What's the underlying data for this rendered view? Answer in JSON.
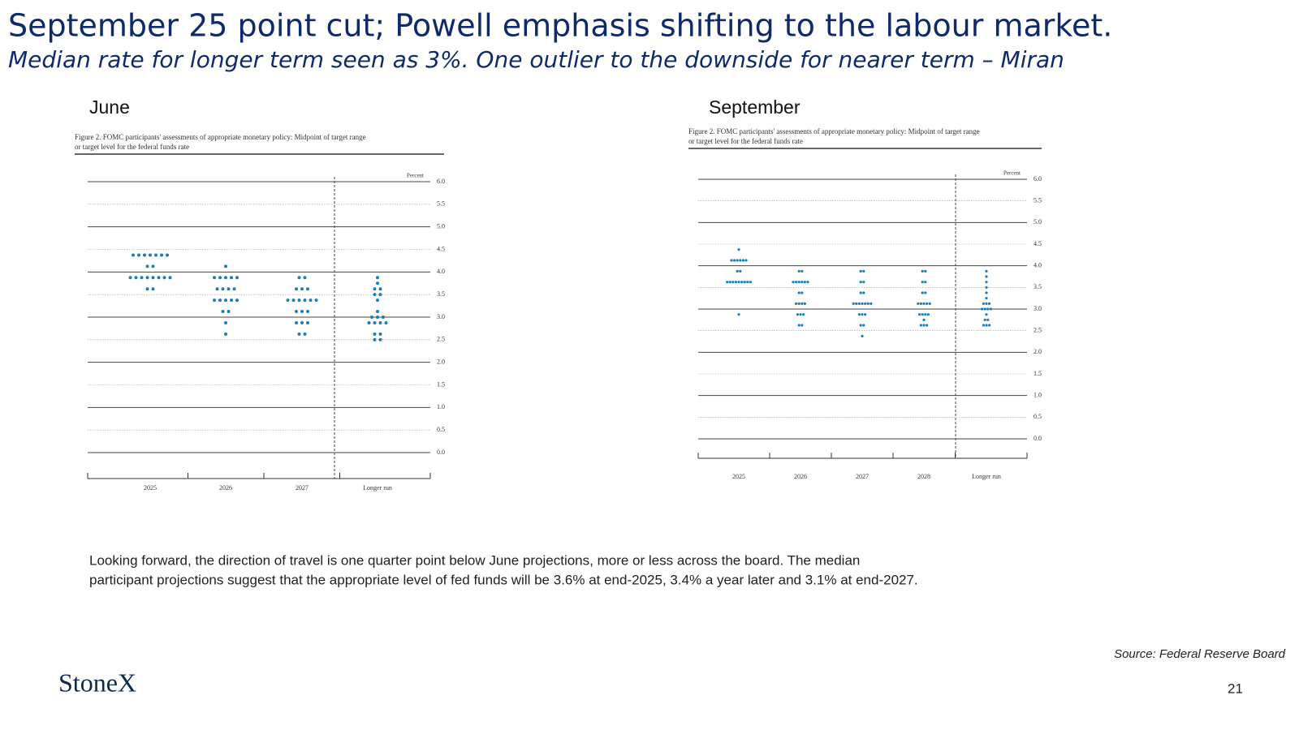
{
  "header": {
    "title": "September 25 point cut; Powell emphasis shifting to the labour market.",
    "subtitle": "Median rate for longer term seen as 3%.  One outlier to the downside for nearer term – Miran"
  },
  "chart_data": [
    {
      "type": "dotplot",
      "label": "June",
      "caption": [
        "Figure 2.  FOMC participants' assessments of appropriate monetary policy:  Midpoint of target range",
        "or target level for the federal funds rate"
      ],
      "y_label": "Percent",
      "color": "#1a7fb5",
      "grid": true,
      "categories": [
        "2025",
        "2026",
        "2027",
        "Longer run"
      ],
      "ylim": [
        0,
        6
      ],
      "yticks": [
        {
          "value": 6,
          "label": "6.0"
        },
        5.5,
        {
          "value": 5,
          "label": "5.0"
        },
        4.5,
        {
          "value": 4,
          "label": "4.0"
        },
        3.5,
        {
          "value": 3,
          "label": "3.0"
        },
        2.5,
        {
          "value": 2,
          "label": "2.0"
        },
        1.5,
        {
          "value": 1,
          "label": "1.0"
        },
        0.5,
        {
          "value": 0,
          "label": "0.0"
        }
      ],
      "values": [
        [
          4.375,
          4.375,
          4.375,
          4.375,
          4.375,
          4.375,
          4.375,
          4.125,
          4.125,
          3.875,
          3.875,
          3.875,
          3.875,
          3.875,
          3.875,
          3.875,
          3.875,
          3.625,
          3.625
        ],
        [
          4.125,
          3.875,
          3.875,
          3.875,
          3.875,
          3.875,
          3.625,
          3.625,
          3.625,
          3.625,
          3.375,
          3.375,
          3.375,
          3.375,
          3.375,
          3.125,
          3.125,
          2.875,
          2.625
        ],
        [
          3.875,
          3.875,
          3.625,
          3.625,
          3.625,
          3.375,
          3.375,
          3.375,
          3.375,
          3.375,
          3.375,
          3.125,
          3.125,
          3.125,
          2.875,
          2.875,
          2.875,
          2.625,
          2.625
        ],
        [
          3.875,
          3.75,
          3.625,
          3.625,
          3.5,
          3.5,
          3.375,
          3.125,
          3,
          3,
          3,
          2.875,
          2.875,
          2.875,
          2.875,
          2.625,
          2.625,
          2.5,
          2.5
        ]
      ]
    },
    {
      "type": "dotplot",
      "label": "September",
      "caption": [
        "Figure 2.  FOMC participants' assessments of appropriate monetary policy:  Midpoint of target range",
        "or target level for the federal funds rate"
      ],
      "y_label": "Percent",
      "color": "#1a7fb5",
      "grid": true,
      "categories": [
        "2025",
        "2026",
        "2027",
        "2028",
        "Longer run"
      ],
      "ylim": [
        0,
        6
      ],
      "yticks": [
        {
          "value": 6,
          "label": "6.0"
        },
        5.5,
        {
          "value": 5,
          "label": "5.0"
        },
        4.5,
        {
          "value": 4,
          "label": "4.0"
        },
        3.5,
        {
          "value": 3,
          "label": "3.0"
        },
        2.5,
        {
          "value": 2,
          "label": "2.0"
        },
        1.5,
        {
          "value": 1,
          "label": "1.0"
        },
        0.5,
        {
          "value": 0,
          "label": "0.0"
        }
      ],
      "values": [
        [
          4.375,
          4.125,
          4.125,
          4.125,
          4.125,
          4.125,
          4.125,
          3.875,
          3.875,
          3.625,
          3.625,
          3.625,
          3.625,
          3.625,
          3.625,
          3.625,
          3.625,
          3.625,
          2.875
        ],
        [
          3.875,
          3.875,
          3.625,
          3.625,
          3.625,
          3.625,
          3.625,
          3.625,
          3.375,
          3.375,
          3.125,
          3.125,
          3.125,
          3.125,
          2.875,
          2.875,
          2.875,
          2.625,
          2.625
        ],
        [
          3.875,
          3.875,
          3.625,
          3.625,
          3.375,
          3.375,
          3.125,
          3.125,
          3.125,
          3.125,
          3.125,
          3.125,
          3.125,
          2.875,
          2.875,
          2.875,
          2.625,
          2.625,
          2.375
        ],
        [
          3.875,
          3.875,
          3.625,
          3.625,
          3.375,
          3.375,
          3.125,
          3.125,
          3.125,
          3.125,
          3.125,
          2.875,
          2.875,
          2.875,
          2.875,
          2.75,
          2.625,
          2.625,
          2.625
        ],
        [
          3.875,
          3.75,
          3.625,
          3.5,
          3.375,
          3.25,
          3.125,
          3.125,
          3.125,
          3,
          3,
          3,
          3,
          2.875,
          2.75,
          2.75,
          2.625,
          2.625,
          2.625
        ]
      ]
    }
  ],
  "body": [
    "Looking forward, the direction of travel is one quarter point below June projections, more or less across the board.   The median",
    "participant projections suggest that the appropriate level of fed funds will be 3.6% at end-2025, 3.4% a year later and 3.1% at end-2027."
  ],
  "source": "Source: Federal Reserve Board",
  "logo": "StoneX",
  "page_number": "21"
}
